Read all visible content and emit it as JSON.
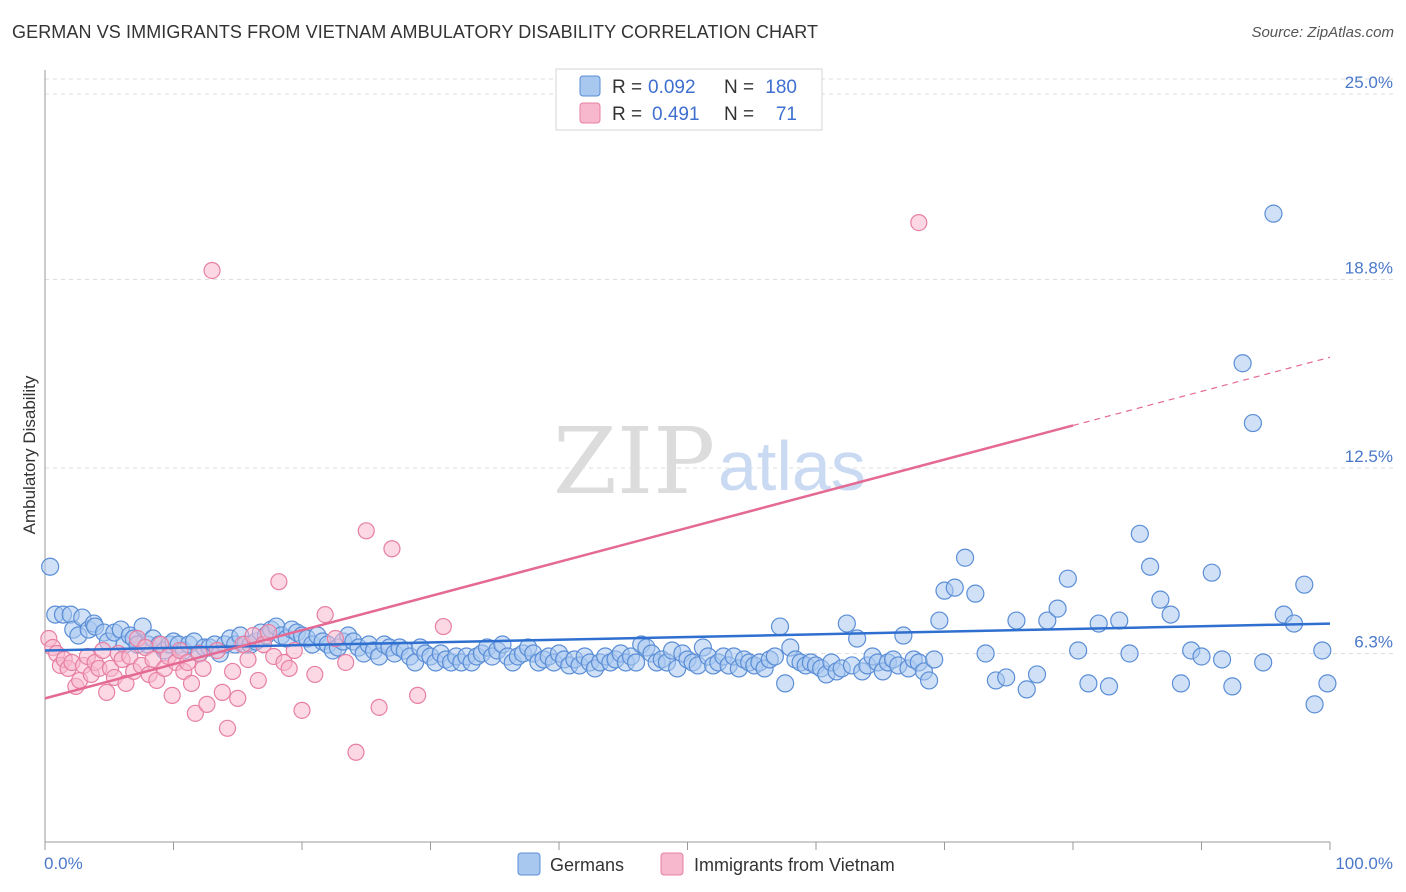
{
  "header": {
    "title": "GERMAN VS IMMIGRANTS FROM VIETNAM AMBULATORY DISABILITY CORRELATION CHART",
    "source": "Source: ZipAtlas.com"
  },
  "watermark": {
    "zip": "ZIP",
    "atlas": "atlas"
  },
  "legend_top": {
    "rows": [
      {
        "r_label": "R =",
        "r_value": "0.092",
        "n_label": "N =",
        "n_value": "180"
      },
      {
        "r_label": "R =",
        "r_value": "0.491",
        "n_label": "N =",
        "n_value": "71"
      }
    ]
  },
  "colors": {
    "germans_fill": "#a9c8f0",
    "germans_stroke": "#5b8ed6",
    "germans_line": "#2f6fcf",
    "vietnam_fill": "#f7b8cd",
    "vietnam_stroke": "#e77fa3",
    "vietnam_line": "#e46a94",
    "grid": "#dddddd"
  },
  "chart_data": {
    "type": "scatter",
    "title": "GERMAN VS IMMIGRANTS FROM VIETNAM AMBULATORY DISABILITY CORRELATION CHART",
    "xlabel": "",
    "ylabel": "Ambulatory Disability",
    "xlim": [
      0,
      100
    ],
    "ylim": [
      0,
      25.8
    ],
    "y_ticks": [
      {
        "value": 6.3,
        "label": "6.3%"
      },
      {
        "value": 12.5,
        "label": "12.5%"
      },
      {
        "value": 18.8,
        "label": "18.8%"
      },
      {
        "value": 25.0,
        "label": "25.0%"
      }
    ],
    "x_ticks": [
      {
        "value": 0,
        "label": "0.0%"
      },
      {
        "value": 100,
        "label": "100.0%"
      }
    ],
    "grid": true,
    "legend_position": "top-center",
    "series": [
      {
        "name": "Germans",
        "R": 0.092,
        "N": 180,
        "trend": {
          "x": [
            0,
            100
          ],
          "y": [
            6.4,
            7.3
          ]
        },
        "points": [
          [
            0.4,
            9.2
          ],
          [
            0.8,
            7.6
          ],
          [
            1.4,
            7.6
          ],
          [
            2.0,
            7.6
          ],
          [
            2.2,
            7.1
          ],
          [
            2.6,
            6.9
          ],
          [
            2.9,
            7.5
          ],
          [
            3.4,
            7.1
          ],
          [
            3.8,
            7.3
          ],
          [
            3.9,
            7.2
          ],
          [
            4.6,
            7.0
          ],
          [
            4.9,
            6.7
          ],
          [
            5.4,
            7.0
          ],
          [
            5.9,
            7.1
          ],
          [
            6.2,
            6.6
          ],
          [
            6.6,
            6.9
          ],
          [
            6.9,
            6.8
          ],
          [
            7.2,
            6.6
          ],
          [
            7.6,
            7.2
          ],
          [
            8.0,
            6.6
          ],
          [
            8.4,
            6.8
          ],
          [
            8.9,
            6.6
          ],
          [
            9.3,
            6.4
          ],
          [
            9.7,
            6.6
          ],
          [
            10.0,
            6.7
          ],
          [
            10.4,
            6.6
          ],
          [
            10.8,
            6.4
          ],
          [
            11.2,
            6.6
          ],
          [
            11.6,
            6.7
          ],
          [
            12.0,
            6.3
          ],
          [
            12.4,
            6.5
          ],
          [
            12.8,
            6.5
          ],
          [
            13.2,
            6.6
          ],
          [
            13.6,
            6.3
          ],
          [
            14.0,
            6.6
          ],
          [
            14.4,
            6.8
          ],
          [
            14.8,
            6.6
          ],
          [
            15.2,
            6.9
          ],
          [
            15.6,
            6.6
          ],
          [
            16.0,
            6.6
          ],
          [
            16.4,
            6.7
          ],
          [
            16.8,
            7.0
          ],
          [
            17.2,
            6.9
          ],
          [
            17.6,
            7.1
          ],
          [
            18.0,
            7.2
          ],
          [
            18.4,
            6.9
          ],
          [
            18.8,
            6.8
          ],
          [
            19.2,
            7.1
          ],
          [
            19.6,
            7.0
          ],
          [
            20.0,
            6.9
          ],
          [
            20.4,
            6.8
          ],
          [
            20.8,
            6.6
          ],
          [
            21.2,
            6.9
          ],
          [
            21.6,
            6.7
          ],
          [
            22.0,
            6.6
          ],
          [
            22.4,
            6.4
          ],
          [
            22.8,
            6.5
          ],
          [
            23.2,
            6.7
          ],
          [
            23.6,
            6.9
          ],
          [
            24.0,
            6.7
          ],
          [
            24.4,
            6.5
          ],
          [
            24.8,
            6.3
          ],
          [
            25.2,
            6.6
          ],
          [
            25.6,
            6.4
          ],
          [
            26.0,
            6.2
          ],
          [
            26.4,
            6.6
          ],
          [
            26.8,
            6.5
          ],
          [
            27.2,
            6.3
          ],
          [
            27.6,
            6.5
          ],
          [
            28.0,
            6.4
          ],
          [
            28.4,
            6.2
          ],
          [
            28.8,
            6.0
          ],
          [
            29.2,
            6.5
          ],
          [
            29.6,
            6.3
          ],
          [
            30.0,
            6.2
          ],
          [
            30.4,
            6.0
          ],
          [
            30.8,
            6.3
          ],
          [
            31.2,
            6.1
          ],
          [
            31.6,
            6.0
          ],
          [
            32.0,
            6.2
          ],
          [
            32.4,
            6.0
          ],
          [
            32.8,
            6.2
          ],
          [
            33.2,
            6.0
          ],
          [
            33.6,
            6.2
          ],
          [
            34.0,
            6.3
          ],
          [
            34.4,
            6.5
          ],
          [
            34.8,
            6.2
          ],
          [
            35.2,
            6.4
          ],
          [
            35.6,
            6.6
          ],
          [
            36.0,
            6.2
          ],
          [
            36.4,
            6.0
          ],
          [
            36.8,
            6.2
          ],
          [
            37.2,
            6.3
          ],
          [
            37.6,
            6.5
          ],
          [
            38.0,
            6.3
          ],
          [
            38.4,
            6.0
          ],
          [
            38.8,
            6.1
          ],
          [
            39.2,
            6.2
          ],
          [
            39.6,
            6.0
          ],
          [
            40.0,
            6.3
          ],
          [
            40.4,
            6.1
          ],
          [
            40.8,
            5.9
          ],
          [
            41.2,
            6.1
          ],
          [
            41.6,
            5.9
          ],
          [
            42.0,
            6.2
          ],
          [
            42.4,
            6.0
          ],
          [
            42.8,
            5.8
          ],
          [
            43.2,
            6.0
          ],
          [
            43.6,
            6.2
          ],
          [
            44.0,
            6.0
          ],
          [
            44.4,
            6.1
          ],
          [
            44.8,
            6.3
          ],
          [
            45.2,
            6.0
          ],
          [
            45.6,
            6.2
          ],
          [
            46.0,
            6.0
          ],
          [
            46.4,
            6.6
          ],
          [
            46.8,
            6.5
          ],
          [
            47.2,
            6.3
          ],
          [
            47.6,
            6.0
          ],
          [
            48.0,
            6.1
          ],
          [
            48.4,
            6.0
          ],
          [
            48.8,
            6.4
          ],
          [
            49.2,
            5.8
          ],
          [
            49.6,
            6.3
          ],
          [
            50.0,
            6.1
          ],
          [
            50.4,
            6.0
          ],
          [
            50.8,
            5.9
          ],
          [
            51.2,
            6.5
          ],
          [
            51.6,
            6.2
          ],
          [
            52.0,
            5.9
          ],
          [
            52.4,
            6.0
          ],
          [
            52.8,
            6.2
          ],
          [
            53.2,
            5.9
          ],
          [
            53.6,
            6.2
          ],
          [
            54.0,
            5.8
          ],
          [
            54.4,
            6.1
          ],
          [
            54.8,
            6.0
          ],
          [
            55.2,
            5.9
          ],
          [
            55.6,
            6.0
          ],
          [
            56.0,
            5.8
          ],
          [
            56.4,
            6.1
          ],
          [
            56.8,
            6.2
          ],
          [
            57.2,
            7.2
          ],
          [
            57.6,
            5.3
          ],
          [
            58.0,
            6.5
          ],
          [
            58.4,
            6.1
          ],
          [
            58.8,
            6.0
          ],
          [
            59.2,
            5.9
          ],
          [
            59.6,
            6.0
          ],
          [
            60.0,
            5.9
          ],
          [
            60.4,
            5.8
          ],
          [
            60.8,
            5.6
          ],
          [
            61.2,
            6.0
          ],
          [
            61.6,
            5.7
          ],
          [
            62.0,
            5.8
          ],
          [
            62.4,
            7.3
          ],
          [
            62.8,
            5.9
          ],
          [
            63.2,
            6.8
          ],
          [
            63.6,
            5.7
          ],
          [
            64.0,
            5.9
          ],
          [
            64.4,
            6.2
          ],
          [
            64.8,
            6.0
          ],
          [
            65.2,
            5.7
          ],
          [
            65.6,
            6.0
          ],
          [
            66.0,
            6.1
          ],
          [
            66.4,
            5.9
          ],
          [
            66.8,
            6.9
          ],
          [
            67.2,
            5.8
          ],
          [
            67.6,
            6.1
          ],
          [
            68.0,
            6.0
          ],
          [
            68.4,
            5.7
          ],
          [
            68.8,
            5.4
          ],
          [
            69.2,
            6.1
          ],
          [
            69.6,
            7.4
          ],
          [
            70.0,
            8.4
          ],
          [
            70.8,
            8.5
          ],
          [
            71.6,
            9.5
          ],
          [
            72.4,
            8.3
          ],
          [
            73.2,
            6.3
          ],
          [
            74.0,
            5.4
          ],
          [
            74.8,
            5.5
          ],
          [
            75.6,
            7.4
          ],
          [
            76.4,
            5.1
          ],
          [
            77.2,
            5.6
          ],
          [
            78.0,
            7.4
          ],
          [
            78.8,
            7.8
          ],
          [
            79.6,
            8.8
          ],
          [
            80.4,
            6.4
          ],
          [
            81.2,
            5.3
          ],
          [
            82.0,
            7.3
          ],
          [
            82.8,
            5.2
          ],
          [
            83.6,
            7.4
          ],
          [
            84.4,
            6.3
          ],
          [
            85.2,
            10.3
          ],
          [
            86.0,
            9.2
          ],
          [
            86.8,
            8.1
          ],
          [
            87.6,
            7.6
          ],
          [
            88.4,
            5.3
          ],
          [
            89.2,
            6.4
          ],
          [
            90.0,
            6.2
          ],
          [
            90.8,
            9.0
          ],
          [
            91.6,
            6.1
          ],
          [
            92.4,
            5.2
          ],
          [
            93.2,
            16.0
          ],
          [
            94.0,
            14.0
          ],
          [
            94.8,
            6.0
          ],
          [
            95.6,
            21.0
          ],
          [
            96.4,
            7.6
          ],
          [
            97.2,
            7.3
          ],
          [
            98.0,
            8.6
          ],
          [
            98.8,
            4.6
          ],
          [
            99.4,
            6.4
          ],
          [
            99.8,
            5.3
          ]
        ]
      },
      {
        "name": "Immigrants from Vietnam",
        "R": 0.491,
        "N": 71,
        "trend": {
          "x": [
            0,
            100
          ],
          "y": [
            4.8,
            16.2
          ]
        },
        "trend_solid_until_x": 80,
        "points": [
          [
            0.3,
            6.8
          ],
          [
            0.6,
            6.5
          ],
          [
            0.9,
            6.3
          ],
          [
            1.2,
            5.9
          ],
          [
            1.5,
            6.1
          ],
          [
            1.8,
            5.8
          ],
          [
            2.1,
            6.0
          ],
          [
            2.4,
            5.2
          ],
          [
            2.7,
            5.4
          ],
          [
            3.0,
            5.9
          ],
          [
            3.3,
            6.2
          ],
          [
            3.6,
            5.6
          ],
          [
            3.9,
            6.0
          ],
          [
            4.2,
            5.8
          ],
          [
            4.5,
            6.4
          ],
          [
            4.8,
            5.0
          ],
          [
            5.1,
            5.8
          ],
          [
            5.4,
            5.5
          ],
          [
            5.7,
            6.3
          ],
          [
            6.0,
            6.1
          ],
          [
            6.3,
            5.3
          ],
          [
            6.6,
            6.2
          ],
          [
            6.9,
            5.7
          ],
          [
            7.2,
            6.8
          ],
          [
            7.5,
            5.9
          ],
          [
            7.8,
            6.5
          ],
          [
            8.1,
            5.6
          ],
          [
            8.4,
            6.1
          ],
          [
            8.7,
            5.4
          ],
          [
            9.0,
            6.6
          ],
          [
            9.3,
            5.8
          ],
          [
            9.6,
            6.2
          ],
          [
            9.9,
            4.9
          ],
          [
            10.2,
            6.0
          ],
          [
            10.5,
            6.4
          ],
          [
            10.8,
            5.7
          ],
          [
            11.1,
            6.0
          ],
          [
            11.4,
            5.3
          ],
          [
            11.7,
            4.3
          ],
          [
            12.0,
            6.3
          ],
          [
            12.3,
            5.8
          ],
          [
            12.6,
            4.6
          ],
          [
            13.0,
            19.1
          ],
          [
            13.4,
            6.4
          ],
          [
            13.8,
            5.0
          ],
          [
            14.2,
            3.8
          ],
          [
            14.6,
            5.7
          ],
          [
            15.0,
            4.8
          ],
          [
            15.4,
            6.6
          ],
          [
            15.8,
            6.1
          ],
          [
            16.2,
            6.9
          ],
          [
            16.6,
            5.4
          ],
          [
            17.0,
            6.6
          ],
          [
            17.4,
            7.0
          ],
          [
            17.8,
            6.2
          ],
          [
            18.2,
            8.7
          ],
          [
            18.6,
            6.0
          ],
          [
            19.0,
            5.8
          ],
          [
            19.4,
            6.4
          ],
          [
            20.0,
            4.4
          ],
          [
            21.0,
            5.6
          ],
          [
            21.8,
            7.6
          ],
          [
            22.6,
            6.8
          ],
          [
            23.4,
            6.0
          ],
          [
            24.2,
            3.0
          ],
          [
            25.0,
            10.4
          ],
          [
            26.0,
            4.5
          ],
          [
            27.0,
            9.8
          ],
          [
            29.0,
            4.9
          ],
          [
            31.0,
            7.2
          ],
          [
            68.0,
            20.7
          ]
        ]
      }
    ]
  },
  "bottom_legend": {
    "items": [
      {
        "label": "Germans"
      },
      {
        "label": "Immigrants from Vietnam"
      }
    ]
  }
}
